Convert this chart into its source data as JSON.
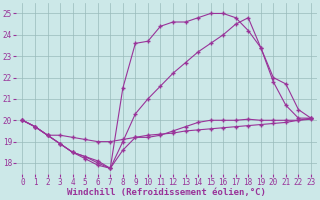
{
  "bg_color": "#cce8e8",
  "line_color": "#993399",
  "grid_color": "#99bbbb",
  "xlabel": "Windchill (Refroidissement éolien,°C)",
  "ylim": [
    17.5,
    25.5
  ],
  "xlim": [
    -0.5,
    23.5
  ],
  "yticks": [
    18,
    19,
    20,
    21,
    22,
    23,
    24,
    25
  ],
  "xticks": [
    0,
    1,
    2,
    3,
    4,
    5,
    6,
    7,
    8,
    9,
    10,
    11,
    12,
    13,
    14,
    15,
    16,
    17,
    18,
    19,
    20,
    21,
    22,
    23
  ],
  "curve1_x": [
    0,
    1,
    2,
    3,
    4,
    5,
    6,
    7,
    8,
    9,
    10,
    11,
    12,
    13,
    14,
    15,
    16,
    17,
    18,
    19,
    20,
    21,
    22,
    23
  ],
  "curve1_y": [
    20.0,
    19.7,
    19.3,
    19.3,
    19.2,
    19.1,
    19.0,
    19.0,
    19.1,
    19.2,
    19.3,
    19.35,
    19.4,
    19.5,
    19.55,
    19.6,
    19.65,
    19.7,
    19.75,
    19.8,
    19.85,
    19.9,
    20.0,
    20.05
  ],
  "curve2_x": [
    0,
    1,
    2,
    3,
    4,
    5,
    6,
    7,
    8,
    9,
    10,
    11,
    12,
    13,
    14,
    15,
    16,
    17,
    18,
    19,
    20,
    21,
    22,
    23
  ],
  "curve2_y": [
    20.0,
    19.7,
    19.3,
    18.9,
    18.5,
    18.3,
    18.1,
    17.75,
    18.6,
    19.2,
    19.2,
    19.3,
    19.5,
    19.7,
    19.9,
    20.0,
    20.0,
    20.0,
    20.05,
    20.0,
    20.0,
    20.0,
    20.0,
    20.1
  ],
  "curve3_x": [
    0,
    1,
    2,
    3,
    4,
    5,
    6,
    7,
    8,
    9,
    10,
    11,
    12,
    13,
    14,
    15,
    16,
    17,
    18,
    19,
    20,
    21,
    22,
    23
  ],
  "curve3_y": [
    20.0,
    19.7,
    19.3,
    18.9,
    18.5,
    18.3,
    18.0,
    17.75,
    21.5,
    23.6,
    23.7,
    24.4,
    24.6,
    24.6,
    24.8,
    25.0,
    25.0,
    24.8,
    24.2,
    23.4,
    21.8,
    20.7,
    20.1,
    20.1
  ],
  "curve4_x": [
    0,
    1,
    2,
    3,
    4,
    5,
    6,
    7,
    8,
    9,
    10,
    11,
    12,
    13,
    14,
    15,
    16,
    17,
    18,
    19,
    20,
    21,
    22,
    23
  ],
  "curve4_y": [
    20.0,
    19.7,
    19.3,
    18.9,
    18.5,
    18.2,
    17.9,
    17.75,
    19.0,
    20.3,
    21.0,
    21.6,
    22.2,
    22.7,
    23.2,
    23.6,
    24.0,
    24.5,
    24.8,
    23.4,
    22.0,
    21.7,
    20.5,
    20.1
  ],
  "marker": "+",
  "markersize": 3.0,
  "linewidth": 0.8,
  "tick_fontsize": 5.5,
  "xlabel_fontsize": 6.5
}
